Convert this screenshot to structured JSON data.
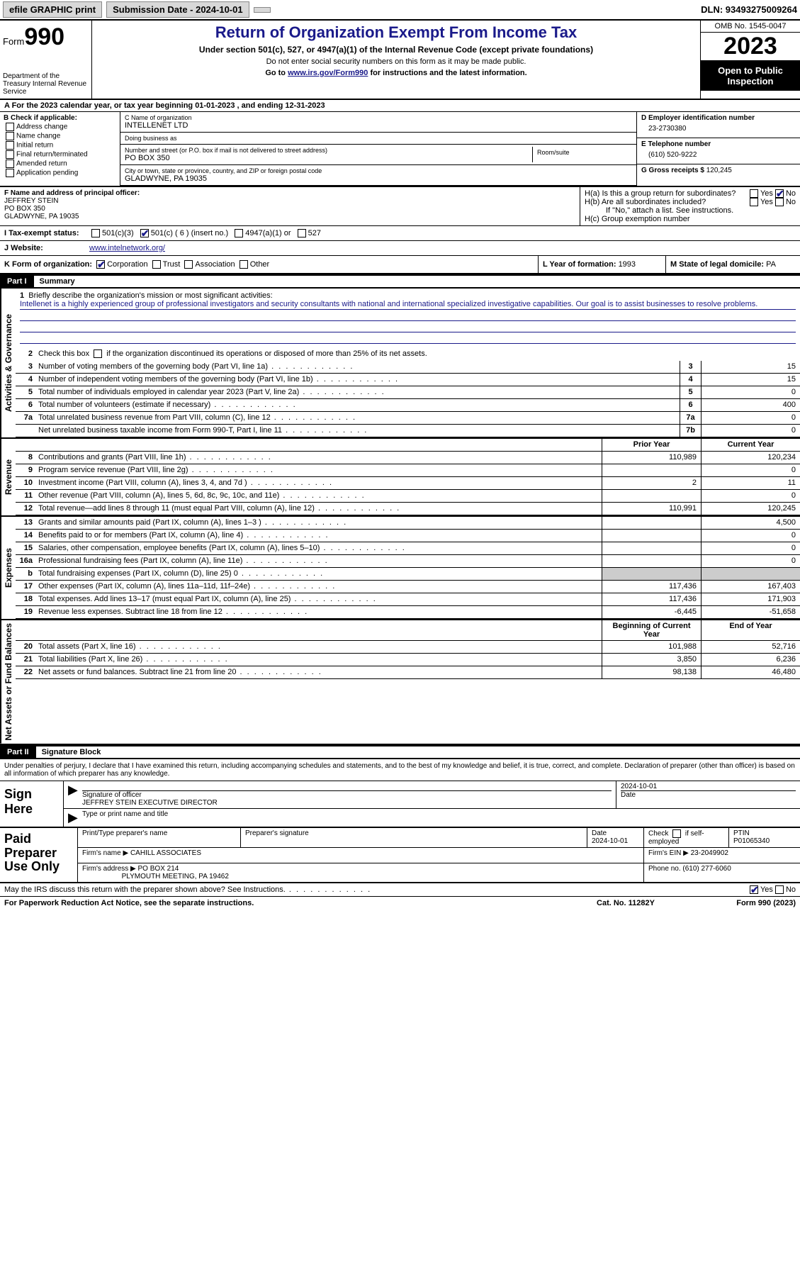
{
  "topbar": {
    "efile": "efile GRAPHIC print",
    "submission": "Submission Date - 2024-10-01",
    "dln": "DLN: 93493275009264"
  },
  "header": {
    "form_label": "Form",
    "form_num": "990",
    "dept": "Department of the Treasury Internal Revenue Service",
    "title": "Return of Organization Exempt From Income Tax",
    "sub": "Under section 501(c), 527, or 4947(a)(1) of the Internal Revenue Code (except private foundations)",
    "line2": "Do not enter social security numbers on this form as it may be made public.",
    "line3_pre": "Go to ",
    "line3_link": "www.irs.gov/Form990",
    "line3_post": " for instructions and the latest information.",
    "omb": "OMB No. 1545-0047",
    "year": "2023",
    "open": "Open to Public Inspection"
  },
  "periodA": "A For the 2023 calendar year, or tax year beginning 01-01-2023    , and ending 12-31-2023",
  "boxB": {
    "hdr": "B Check if applicable:",
    "opts": [
      "Address change",
      "Name change",
      "Initial return",
      "Final return/terminated",
      "Amended return",
      "Application pending"
    ]
  },
  "boxC": {
    "name_lbl": "C Name of organization",
    "name": "INTELLENET LTD",
    "dba_lbl": "Doing business as",
    "dba": "",
    "addr_lbl": "Number and street (or P.O. box if mail is not delivered to street address)",
    "addr": "PO BOX 350",
    "room_lbl": "Room/suite",
    "city_lbl": "City or town, state or province, country, and ZIP or foreign postal code",
    "city": "GLADWYNE, PA  19035"
  },
  "boxD": {
    "ein_lbl": "D Employer identification number",
    "ein": "23-2730380",
    "tel_lbl": "E Telephone number",
    "tel": "(610) 520-9222",
    "gross_lbl": "G Gross receipts $",
    "gross": "120,245"
  },
  "boxF": {
    "lbl": "F  Name and address of principal officer:",
    "name": "JEFFREY STEIN",
    "addr1": "PO BOX 350",
    "addr2": "GLADWYNE, PA  19035"
  },
  "boxH": {
    "a": "H(a)  Is this a group return for subordinates?",
    "b": "H(b)  Are all subordinates included?",
    "b2": "If \"No,\" attach a list. See instructions.",
    "c": "H(c)  Group exemption number  ",
    "yes": "Yes",
    "no": "No"
  },
  "statusI": {
    "lbl": "I   Tax-exempt status:",
    "o1": "501(c)(3)",
    "o2": "501(c) ( 6 ) (insert no.)",
    "o3": "4947(a)(1) or",
    "o4": "527"
  },
  "rowJ": {
    "lbl": "J   Website: ",
    "val": "www.intelnetwork.org/"
  },
  "rowK": {
    "lbl": "K Form of organization:",
    "o1": "Corporation",
    "o2": "Trust",
    "o3": "Association",
    "o4": "Other"
  },
  "rowL": {
    "lbl": "L Year of formation: ",
    "val": "1993"
  },
  "rowM": {
    "lbl": "M State of legal domicile: ",
    "val": "PA"
  },
  "partI": {
    "num": "Part I",
    "title": "Summary"
  },
  "summary": {
    "vlabel1": "Activities & Governance",
    "q1_lbl": "Briefly describe the organization's mission or most significant activities:",
    "q1_txt": "Intellenet is a highly experienced group of professional investigators and security consultants with national and international specialized investigative capabilities. Our goal is to assist businesses to resolve problems.",
    "q2": "Check this box      if the organization discontinued its operations or disposed of more than 25% of its net assets.",
    "rows_gov": [
      {
        "n": "3",
        "t": "Number of voting members of the governing body (Part VI, line 1a)",
        "b": "3",
        "v": "15"
      },
      {
        "n": "4",
        "t": "Number of independent voting members of the governing body (Part VI, line 1b)",
        "b": "4",
        "v": "15"
      },
      {
        "n": "5",
        "t": "Total number of individuals employed in calendar year 2023 (Part V, line 2a)",
        "b": "5",
        "v": "0"
      },
      {
        "n": "6",
        "t": "Total number of volunteers (estimate if necessary)",
        "b": "6",
        "v": "400"
      },
      {
        "n": "7a",
        "t": "Total unrelated business revenue from Part VIII, column (C), line 12",
        "b": "7a",
        "v": "0"
      },
      {
        "n": "",
        "t": "Net unrelated business taxable income from Form 990-T, Part I, line 11",
        "b": "7b",
        "v": "0"
      }
    ],
    "vlabel2": "Revenue",
    "hdr_prior": "Prior Year",
    "hdr_curr": "Current Year",
    "rows_rev": [
      {
        "n": "8",
        "t": "Contributions and grants (Part VIII, line 1h)",
        "p": "110,989",
        "c": "120,234"
      },
      {
        "n": "9",
        "t": "Program service revenue (Part VIII, line 2g)",
        "p": "",
        "c": "0"
      },
      {
        "n": "10",
        "t": "Investment income (Part VIII, column (A), lines 3, 4, and 7d )",
        "p": "2",
        "c": "11"
      },
      {
        "n": "11",
        "t": "Other revenue (Part VIII, column (A), lines 5, 6d, 8c, 9c, 10c, and 11e)",
        "p": "",
        "c": "0"
      },
      {
        "n": "12",
        "t": "Total revenue—add lines 8 through 11 (must equal Part VIII, column (A), line 12)",
        "p": "110,991",
        "c": "120,245"
      }
    ],
    "vlabel3": "Expenses",
    "rows_exp": [
      {
        "n": "13",
        "t": "Grants and similar amounts paid (Part IX, column (A), lines 1–3 )",
        "p": "",
        "c": "4,500"
      },
      {
        "n": "14",
        "t": "Benefits paid to or for members (Part IX, column (A), line 4)",
        "p": "",
        "c": "0"
      },
      {
        "n": "15",
        "t": "Salaries, other compensation, employee benefits (Part IX, column (A), lines 5–10)",
        "p": "",
        "c": "0"
      },
      {
        "n": "16a",
        "t": "Professional fundraising fees (Part IX, column (A), line 11e)",
        "p": "",
        "c": "0"
      },
      {
        "n": "b",
        "t": "Total fundraising expenses (Part IX, column (D), line 25) 0",
        "p": "grey",
        "c": "grey"
      },
      {
        "n": "17",
        "t": "Other expenses (Part IX, column (A), lines 11a–11d, 11f–24e)",
        "p": "117,436",
        "c": "167,403"
      },
      {
        "n": "18",
        "t": "Total expenses. Add lines 13–17 (must equal Part IX, column (A), line 25)",
        "p": "117,436",
        "c": "171,903"
      },
      {
        "n": "19",
        "t": "Revenue less expenses. Subtract line 18 from line 12",
        "p": "-6,445",
        "c": "-51,658"
      }
    ],
    "vlabel4": "Net Assets or Fund Balances",
    "hdr_beg": "Beginning of Current Year",
    "hdr_end": "End of Year",
    "rows_net": [
      {
        "n": "20",
        "t": "Total assets (Part X, line 16)",
        "p": "101,988",
        "c": "52,716"
      },
      {
        "n": "21",
        "t": "Total liabilities (Part X, line 26)",
        "p": "3,850",
        "c": "6,236"
      },
      {
        "n": "22",
        "t": "Net assets or fund balances. Subtract line 21 from line 20",
        "p": "98,138",
        "c": "46,480"
      }
    ]
  },
  "partII": {
    "num": "Part II",
    "title": "Signature Block"
  },
  "sig": {
    "decl": "Under penalties of perjury, I declare that I have examined this return, including accompanying schedules and statements, and to the best of my knowledge and belief, it is true, correct, and complete. Declaration of preparer (other than officer) is based on all information of which preparer has any knowledge.",
    "sign_here": "Sign Here",
    "date": "2024-10-01",
    "sig_lbl": "Signature of officer",
    "officer": "JEFFREY STEIN  EXECUTIVE DIRECTOR",
    "type_lbl": "Type or print name and title",
    "date_lbl": "Date"
  },
  "prep": {
    "title": "Paid Preparer Use Only",
    "h1": "Print/Type preparer's name",
    "h2": "Preparer's signature",
    "h3": "Date",
    "h3v": "2024-10-01",
    "h4": "Check        if self-employed",
    "h5": "PTIN",
    "h5v": "P01065340",
    "firm_lbl": "Firm's name     ",
    "firm": "CAHILL ASSOCIATES",
    "ein_lbl": "Firm's EIN  ",
    "ein": "23-2049902",
    "addr_lbl": "Firm's address ",
    "addr1": "PO BOX 214",
    "addr2": "PLYMOUTH MEETING, PA  19462",
    "phone_lbl": "Phone no. ",
    "phone": "(610) 277-6060"
  },
  "discuss": {
    "txt": "May the IRS discuss this return with the preparer shown above? See Instructions.",
    "yes": "Yes",
    "no": "No"
  },
  "footer": {
    "f1": "For Paperwork Reduction Act Notice, see the separate instructions.",
    "f2": "Cat. No. 11282Y",
    "f3": "Form 990 (2023)"
  }
}
